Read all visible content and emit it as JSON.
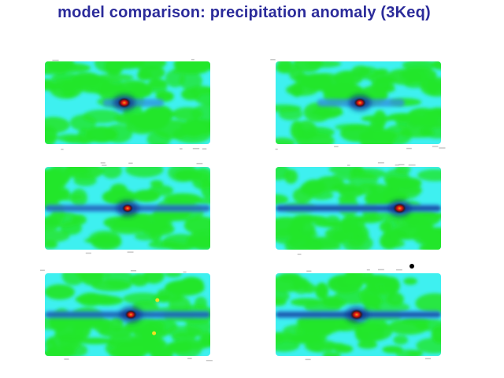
{
  "title": "model comparison: precipitation anomaly (3Keq)",
  "colors": {
    "title": "#2b2b9a",
    "background": "#ffffff",
    "ocean_field": "#3ef0f0",
    "land_patch": "#22e62a",
    "band_mid": "#2f8fe0",
    "band_strong": "#0a2f8a",
    "hotspot_outer": "#f29a18",
    "hotspot_inner": "#e01010",
    "speckle": "#c8c8c8",
    "dot": "#000000"
  },
  "chart_data": {
    "type": "heatmap",
    "layout": "3 rows x 2 columns of map panels",
    "variable": "precipitation anomaly",
    "experiment": "3Keq",
    "panels": [
      {
        "row": 1,
        "col": 1,
        "band": {
          "lat": 0.0,
          "lon_start": 0.35,
          "lon_end": 0.72,
          "strength": 0.45
        },
        "hotspots": [
          {
            "lon": 0.48,
            "lat": 0.0,
            "intensity": 0.95
          }
        ],
        "extra_dots": []
      },
      {
        "row": 1,
        "col": 2,
        "band": {
          "lat": 0.0,
          "lon_start": 0.25,
          "lon_end": 0.78,
          "strength": 0.5
        },
        "hotspots": [
          {
            "lon": 0.51,
            "lat": 0.0,
            "intensity": 0.8
          }
        ],
        "extra_dots": []
      },
      {
        "row": 2,
        "col": 1,
        "band": {
          "lat": 0.0,
          "lon_start": 0.0,
          "lon_end": 1.0,
          "strength": 0.55
        },
        "hotspots": [
          {
            "lon": 0.5,
            "lat": 0.0,
            "intensity": 0.6
          }
        ],
        "extra_dots": []
      },
      {
        "row": 2,
        "col": 2,
        "band": {
          "lat": 0.0,
          "lon_start": 0.0,
          "lon_end": 1.0,
          "strength": 0.9
        },
        "hotspots": [
          {
            "lon": 0.75,
            "lat": 0.0,
            "intensity": 1.0
          }
        ],
        "extra_dots": []
      },
      {
        "row": 3,
        "col": 1,
        "band": {
          "lat": 0.0,
          "lon_start": 0.0,
          "lon_end": 1.0,
          "strength": 0.6
        },
        "hotspots": [
          {
            "lon": 0.52,
            "lat": 0.0,
            "intensity": 0.75
          }
        ],
        "extra_dots": [
          {
            "lon": 0.68,
            "lat": 0.35
          },
          {
            "lon": 0.66,
            "lat": -0.45
          }
        ]
      },
      {
        "row": 3,
        "col": 2,
        "band": {
          "lat": 0.0,
          "lon_start": 0.0,
          "lon_end": 1.0,
          "strength": 0.8
        },
        "hotspots": [
          {
            "lon": 0.49,
            "lat": 0.0,
            "intensity": 1.0
          }
        ],
        "extra_dots": []
      }
    ]
  }
}
